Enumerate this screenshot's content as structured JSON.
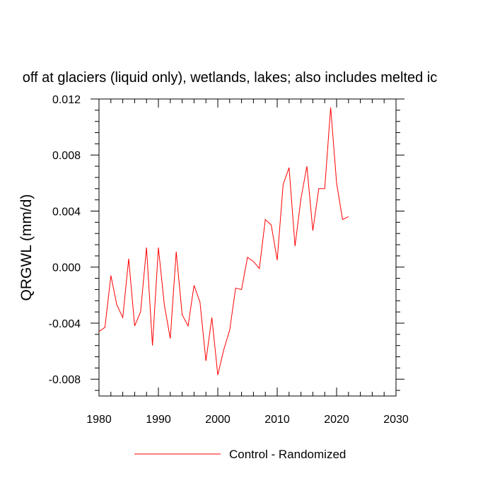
{
  "chart_data": {
    "type": "line",
    "title": "off at glaciers (liquid only), wetlands, lakes; also includes melted ic",
    "xlabel": "",
    "ylabel": "QRGWL  (mm/d)",
    "xlim": [
      1980,
      2030
    ],
    "ylim": [
      -0.0092,
      0.012
    ],
    "xticks": [
      1980,
      1990,
      2000,
      2010,
      2020,
      2030
    ],
    "xtick_labels": [
      "1980",
      "1990",
      "2000",
      "2010",
      "2020",
      "2030"
    ],
    "yticks": [
      -0.008,
      -0.004,
      0.0,
      0.004,
      0.008,
      0.012
    ],
    "ytick_labels": [
      "-0.008",
      "-0.004",
      "0.000",
      "0.004",
      "0.008",
      "0.012"
    ],
    "grid": false,
    "legend_position": "bottom-center",
    "series": [
      {
        "name": "Control - Randomized",
        "color": "#ff0000",
        "x": [
          1980,
          1981,
          1982,
          1983,
          1984,
          1985,
          1986,
          1987,
          1988,
          1989,
          1990,
          1991,
          1992,
          1993,
          1994,
          1995,
          1996,
          1997,
          1998,
          1999,
          2000,
          2001,
          2002,
          2003,
          2004,
          2005,
          2006,
          2007,
          2008,
          2009,
          2010,
          2011,
          2012,
          2013,
          2014,
          2015,
          2016,
          2017,
          2018,
          2019,
          2020,
          2021,
          2022
        ],
        "y": [
          -0.0046,
          -0.0043,
          -0.0006,
          -0.0027,
          -0.0036,
          0.0006,
          -0.0042,
          -0.0032,
          0.0014,
          -0.0056,
          0.0014,
          -0.0027,
          -0.0051,
          0.0011,
          -0.0034,
          -0.0042,
          -0.0013,
          -0.0025,
          -0.0067,
          -0.0036,
          -0.0077,
          -0.0059,
          -0.0045,
          -0.0015,
          -0.0016,
          0.0007,
          0.0004,
          -0.0001,
          0.0034,
          0.003,
          0.0005,
          0.0059,
          0.0071,
          0.0015,
          0.0049,
          0.0072,
          0.0026,
          0.0056,
          0.0056,
          0.0114,
          0.006,
          0.0034,
          0.0036
        ]
      }
    ]
  }
}
